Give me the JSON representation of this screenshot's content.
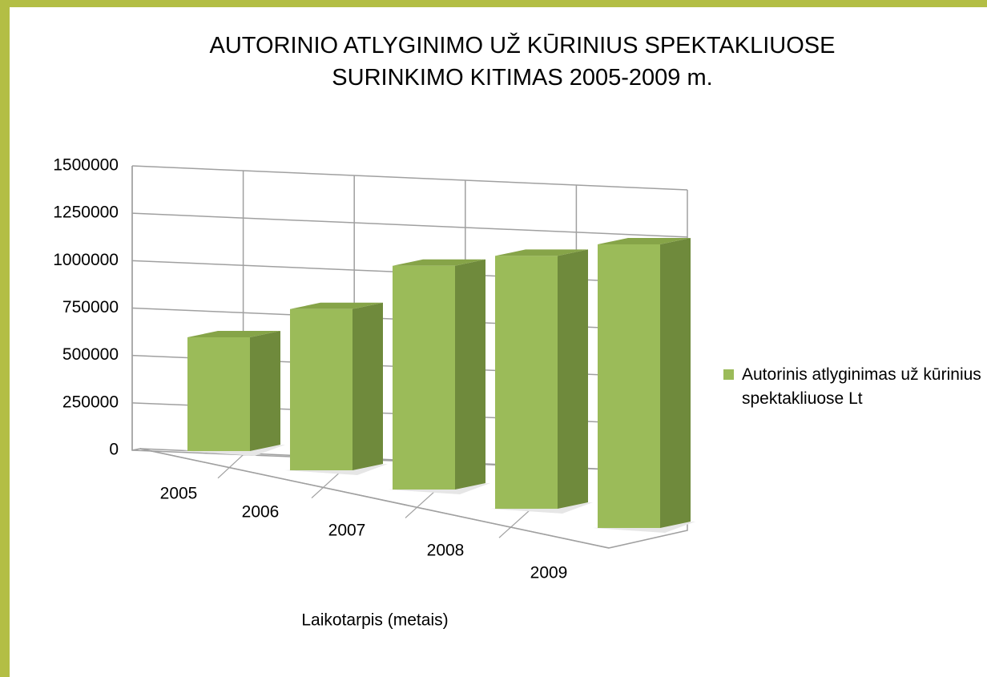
{
  "chart_data": {
    "type": "bar3d",
    "title": "AUTORINIO ATLYGINIMO UŽ KŪRINIUS SPEKTAKLIUOSE\nSURINKIMO KITIMAS 2005-2009 m.",
    "x_label": "Laikotarpis (metais)",
    "categories": [
      "2005",
      "2006",
      "2007",
      "2008",
      "2009"
    ],
    "series": [
      {
        "name": "Autorinis atlyginimas už kūrinius spektakliuose Lt",
        "color": "#9bbb59",
        "values": [
          600000,
          780000,
          1000000,
          1050000,
          1100000
        ]
      }
    ],
    "ylim": [
      0,
      1500000
    ],
    "yticks": [
      0,
      250000,
      500000,
      750000,
      1000000,
      1250000,
      1500000
    ],
    "grid": true,
    "legend": "right"
  }
}
